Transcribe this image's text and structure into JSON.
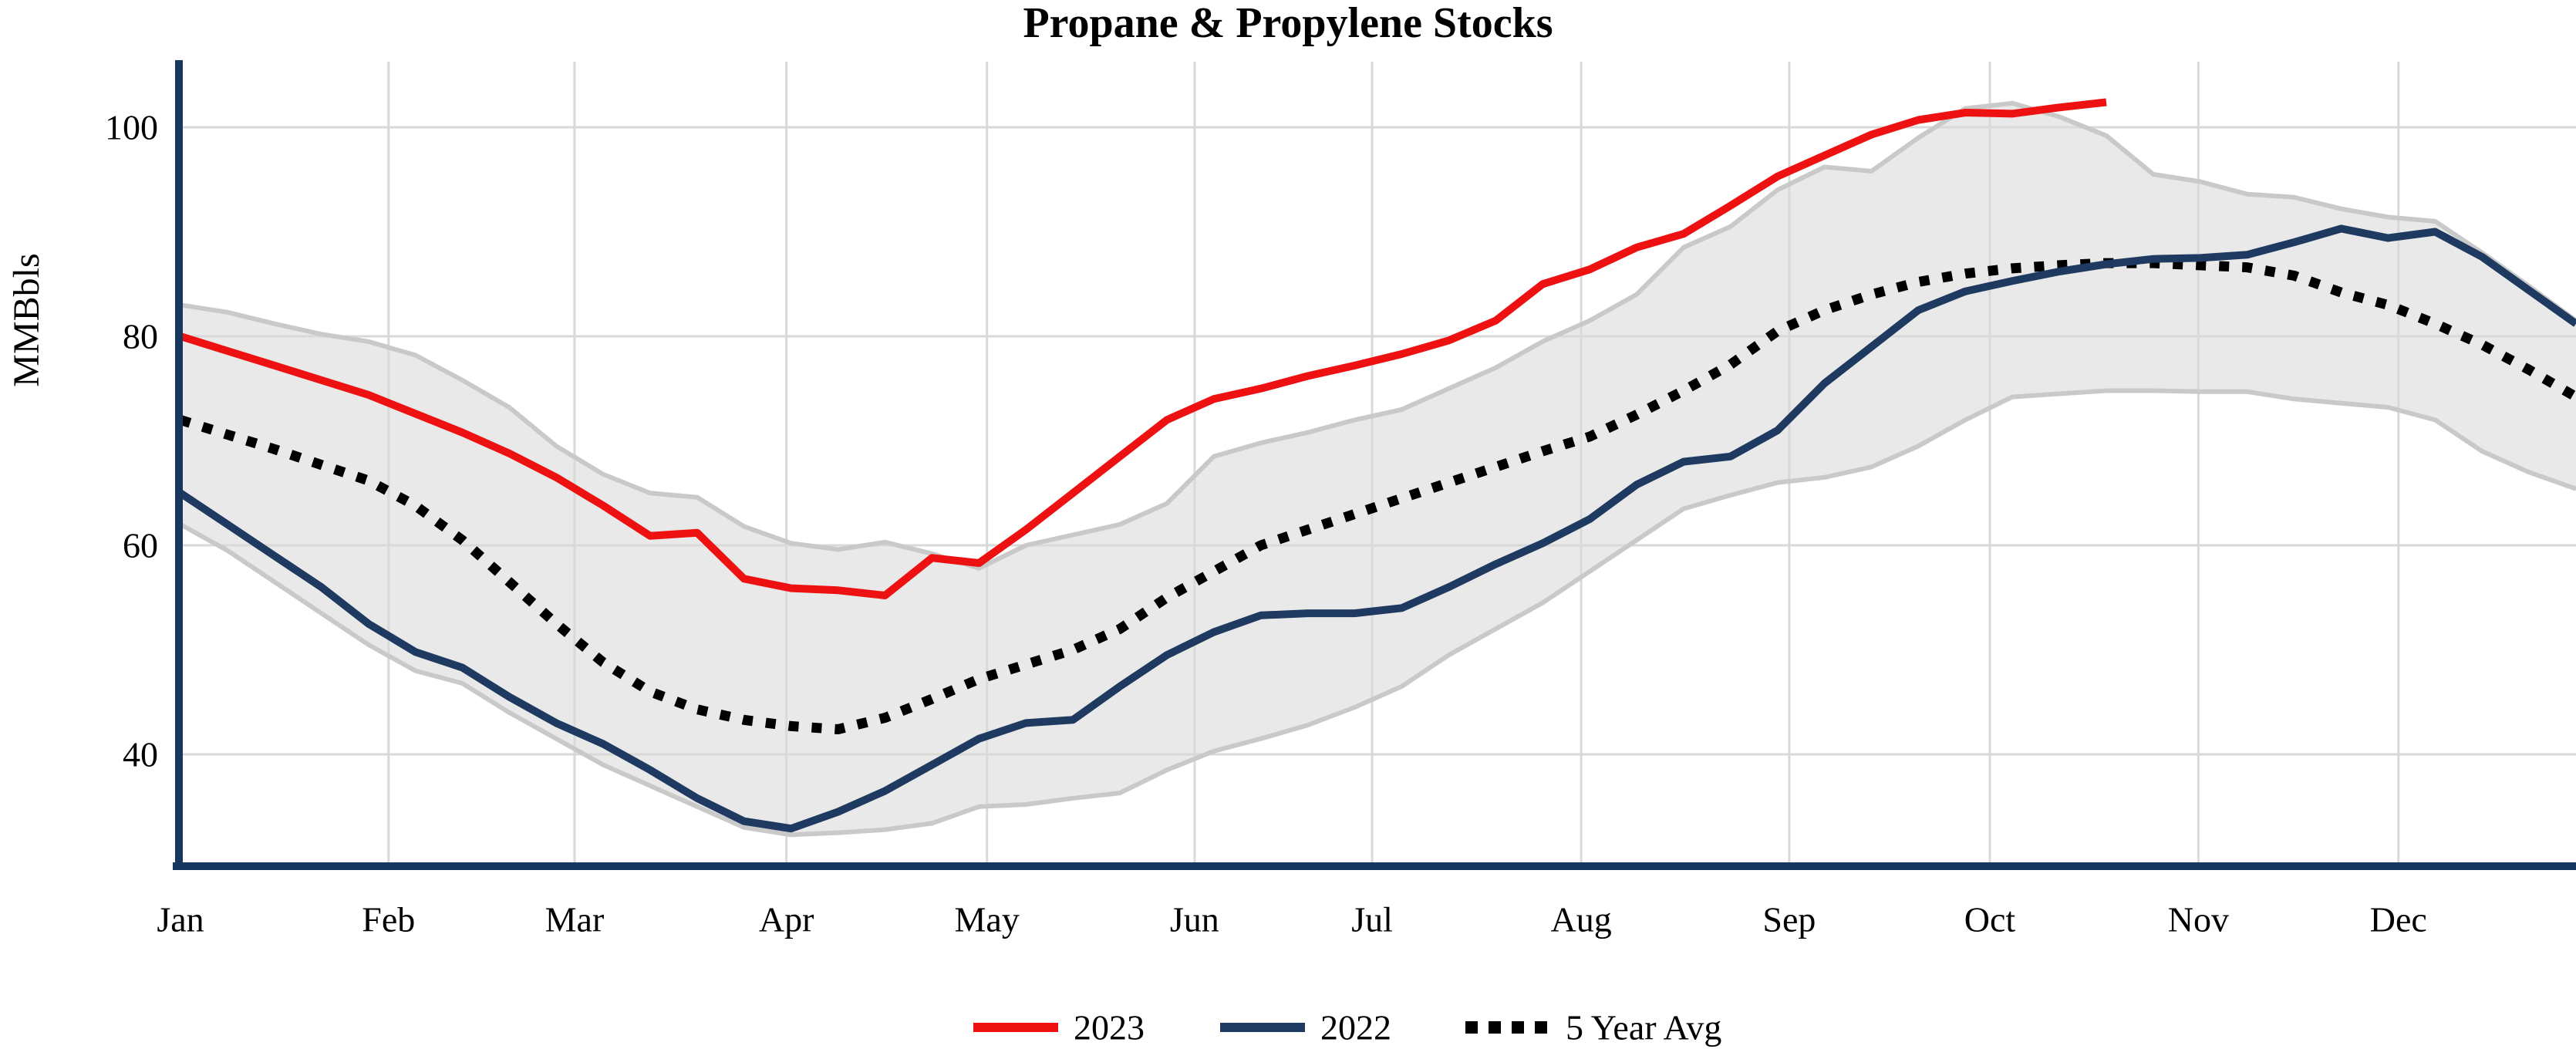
{
  "chart_data": {
    "type": "line",
    "title": "Propane & Propylene Stocks",
    "ylabel": "MMBbls",
    "x_axis": {
      "unit": "weeks",
      "months": [
        "Jan",
        "Feb",
        "Mar",
        "Apr",
        "May",
        "Jun",
        "Jul",
        "Aug",
        "Sep",
        "Oct",
        "Nov",
        "Dec"
      ],
      "month_tick_weeks": [
        0,
        4.43,
        8.39,
        12.9,
        17.17,
        21.59,
        25.37,
        29.82,
        34.25,
        38.52,
        42.96,
        47.22
      ],
      "weeks_total": 52
    },
    "y_axis": {
      "ticks": [
        100,
        80,
        60,
        40
      ],
      "view_min": 29,
      "view_max": 108
    },
    "grid": true,
    "legend_position": "bottom-center",
    "series": [
      {
        "name": "2023",
        "color": "#ee1111",
        "style": "solid",
        "start_week": 0,
        "values": [
          80,
          78.6,
          77.2,
          75.8,
          74.4,
          72.6,
          70.8,
          68.8,
          66.5,
          63.8,
          60.9,
          61.2,
          56.8,
          55.9,
          55.7,
          55.2,
          58.8,
          58.3,
          61.5,
          65,
          68.5,
          72,
          74,
          75,
          76.2,
          77.2,
          78.3,
          79.6,
          81.5,
          85,
          86.4,
          88.5,
          89.8,
          92.5,
          95.3,
          97.3,
          99.3,
          100.7,
          101.4,
          101.3,
          101.9,
          102.4
        ]
      },
      {
        "name": "2022",
        "color": "#1f3a60",
        "style": "solid",
        "start_week": 0,
        "values": [
          65,
          62,
          59,
          56,
          52.5,
          49.8,
          48.3,
          45.5,
          43,
          41,
          38.5,
          35.8,
          33.6,
          32.9,
          34.5,
          36.5,
          39,
          41.5,
          43,
          43.3,
          46.5,
          49.5,
          51.7,
          53.3,
          53.5,
          53.5,
          54,
          56,
          58.2,
          60.2,
          62.5,
          65.8,
          68,
          68.5,
          71,
          75.5,
          79,
          82.5,
          84.3,
          85.3,
          86.2,
          86.9,
          87.4,
          87.5,
          87.8,
          89,
          90.3,
          89.4,
          90,
          87.6,
          84.4,
          81.2
        ]
      },
      {
        "name": "5 Year Avg",
        "color": "#000000",
        "style": "dotted",
        "start_week": 0,
        "values": [
          72,
          70.6,
          69.2,
          67.7,
          66.2,
          63.8,
          60.5,
          56.5,
          52.5,
          48.8,
          46,
          44.3,
          43.3,
          42.7,
          42.4,
          43.5,
          45.3,
          47.2,
          48.6,
          50,
          52,
          55,
          57.5,
          60,
          61.5,
          63,
          64.5,
          66,
          67.5,
          69,
          70.4,
          72.5,
          74.8,
          77.3,
          80.5,
          82.5,
          84,
          85.2,
          86,
          86.5,
          86.8,
          87,
          87,
          86.8,
          86.6,
          85.8,
          84.2,
          83,
          81.2,
          79.2,
          76.8,
          74.2
        ]
      }
    ],
    "band": {
      "name": "5-year min-max range",
      "fill": "#e9e9e9",
      "edge": "#c9c9c9",
      "top": [
        83,
        82.3,
        81.2,
        80.2,
        79.5,
        78.2,
        75.8,
        73.2,
        69.5,
        66.8,
        65,
        64.6,
        61.8,
        60.2,
        59.6,
        60.3,
        59.2,
        57.8,
        60,
        61,
        62,
        64,
        68.5,
        69.8,
        70.8,
        72,
        73,
        75,
        77,
        79.5,
        81.5,
        84,
        88.5,
        90.5,
        94,
        96.2,
        95.8,
        99,
        101.8,
        102.3,
        101,
        99.2,
        95.5,
        94.8,
        93.6,
        93.3,
        92.2,
        91.4,
        91,
        88,
        84.8,
        81.5
      ],
      "bottom": [
        62,
        59.5,
        56.5,
        53.5,
        50.5,
        48,
        46.8,
        44,
        41.5,
        39,
        37,
        35,
        33,
        32.3,
        32.5,
        32.8,
        33.4,
        35,
        35.2,
        35.8,
        36.3,
        38.5,
        40.3,
        41.5,
        42.8,
        44.5,
        46.5,
        49.5,
        52,
        54.5,
        57.5,
        60.5,
        63.5,
        64.8,
        66,
        66.5,
        67.5,
        69.5,
        72,
        74.2,
        74.5,
        74.8,
        74.8,
        74.7,
        74.7,
        74,
        73.6,
        73.2,
        72,
        69,
        67,
        65.4
      ]
    },
    "colors": {
      "axis": "#17375e",
      "gridline": "#d9d9d9"
    }
  }
}
